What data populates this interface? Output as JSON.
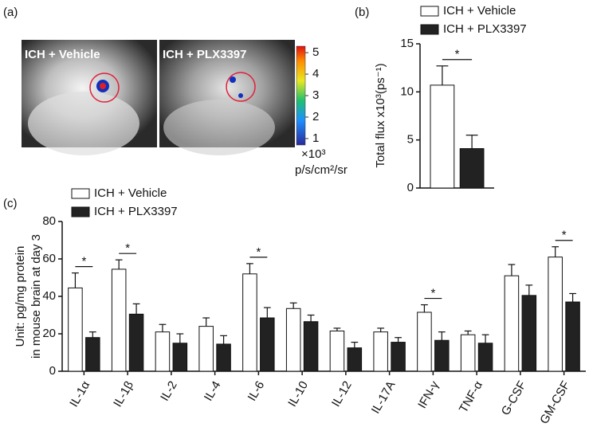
{
  "image_panel": {
    "panel_label": "(a)",
    "images": [
      "ICH + Vehicle",
      "ICH + PLX3397"
    ],
    "colorbar": {
      "lim": [
        0.7,
        5.3
      ],
      "ticks": [
        1,
        2,
        3,
        4,
        5
      ]
    },
    "unit": [
      "×10³",
      "p/s/cm²/sr"
    ]
  },
  "chart_data": [
    {
      "type": "bar",
      "panel_label": "(b)",
      "y_label": [
        "Total flux x10³(ps⁻¹)"
      ],
      "ylim": [
        0,
        15
      ],
      "yticks": [
        0,
        5,
        10,
        15
      ],
      "series": [
        {
          "name": "ICH + Vehicle",
          "color": "#ffffff",
          "values": [
            10.7
          ],
          "errors": [
            2.0
          ]
        },
        {
          "name": "ICH + PLX3397",
          "color": "#222222",
          "values": [
            4.1
          ],
          "errors": [
            1.4
          ]
        }
      ],
      "annotations": [
        {
          "label": "*"
        }
      ]
    },
    {
      "type": "bar",
      "panel_label": "(c)",
      "y_label": [
        "Unit: pg/mg protein",
        "in mouse brain at day 3"
      ],
      "ylim": [
        0,
        80
      ],
      "yticks": [
        0,
        20,
        40,
        60,
        80
      ],
      "categories": [
        "IL-1α",
        "IL-1β",
        "IL-2",
        "IL-4",
        "IL-6",
        "IL-10",
        "IL-12",
        "IL-17A",
        "IFN-γ",
        "TNF-α",
        "G-CSF",
        "GM-CSF"
      ],
      "series": [
        {
          "name": "ICH + Vehicle",
          "color": "#ffffff",
          "values": [
            44.5,
            54.5,
            21,
            24,
            52,
            33.5,
            21.5,
            21,
            31.5,
            19.5,
            51,
            61
          ],
          "errors": [
            8,
            5,
            4,
            4.5,
            5.5,
            3,
            1.5,
            2,
            4,
            2,
            6,
            5.5
          ]
        },
        {
          "name": "ICH + PLX3397",
          "color": "#222222",
          "values": [
            18,
            30.5,
            15,
            14.5,
            28.5,
            26.5,
            12.5,
            15.5,
            16.5,
            15,
            40.5,
            37
          ],
          "errors": [
            3,
            5.5,
            5,
            4.5,
            5.5,
            3.5,
            3,
            2.5,
            4.5,
            4.5,
            5.5,
            4.5
          ]
        }
      ],
      "annotations": [
        {
          "label": "*",
          "category": "IL-1α"
        },
        {
          "label": "*",
          "category": "IL-1β"
        },
        {
          "label": "*",
          "category": "IL-6"
        },
        {
          "label": "*",
          "category": "IFN-γ"
        },
        {
          "label": "*",
          "category": "GM-CSF"
        }
      ]
    }
  ]
}
